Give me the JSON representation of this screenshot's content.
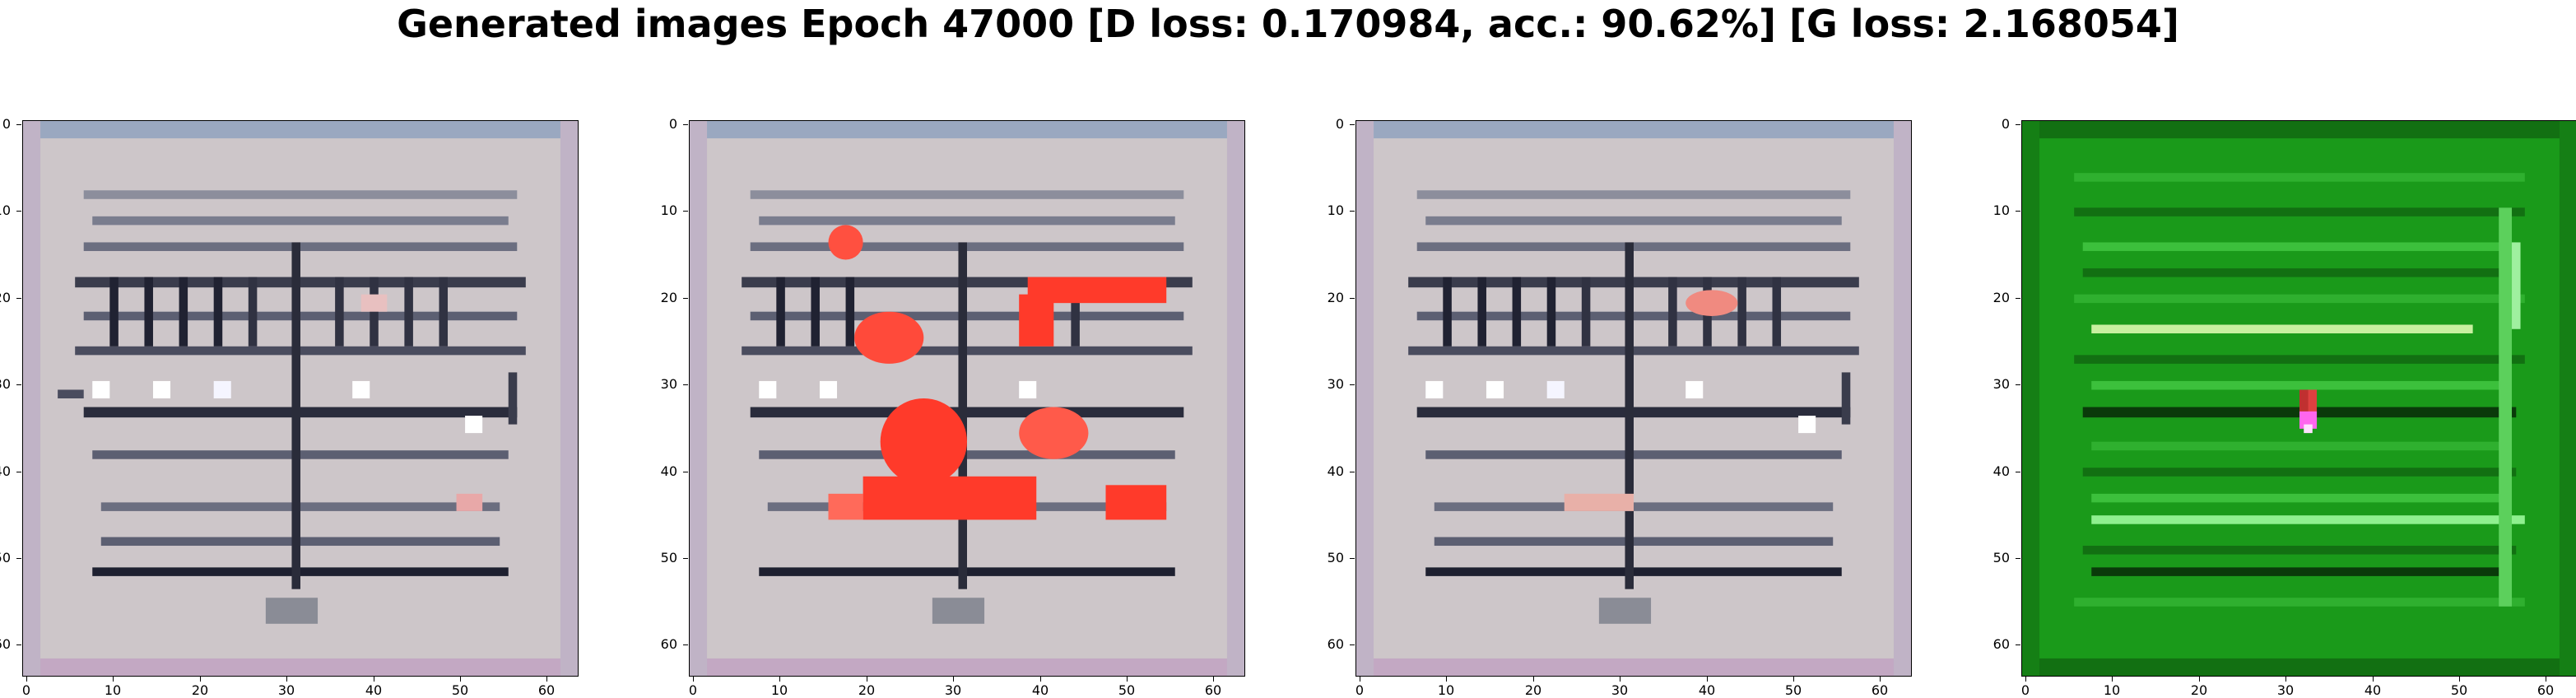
{
  "figure": {
    "title": "Generated images Epoch 47000 [D loss: 0.170984, acc.: 90.62%] [G loss: 2.168054]"
  },
  "axes": {
    "x_ticks": [
      "0",
      "10",
      "20",
      "30",
      "40",
      "50",
      "60"
    ],
    "y_ticks": [
      "0",
      "10",
      "20",
      "30",
      "40",
      "50",
      "60"
    ],
    "tick_values": [
      0,
      10,
      20,
      30,
      40,
      50,
      60
    ],
    "extent": [
      -0.5,
      63.5
    ]
  },
  "panels": [
    {
      "name": "generated-image-1",
      "palette": "grey",
      "base": "#cdc6c9"
    },
    {
      "name": "generated-image-2",
      "palette": "grey-red",
      "base": "#cdc6c9"
    },
    {
      "name": "generated-image-3",
      "palette": "grey",
      "base": "#cdc6c9"
    },
    {
      "name": "generated-image-4",
      "palette": "green",
      "base": "#1a9a1a"
    }
  ],
  "colors": {
    "accent_red": "#ff3a2a",
    "dark_stripe": "#1e2030",
    "green_highlight": "#8ff08f",
    "magenta_spot": "#ff66ee"
  }
}
